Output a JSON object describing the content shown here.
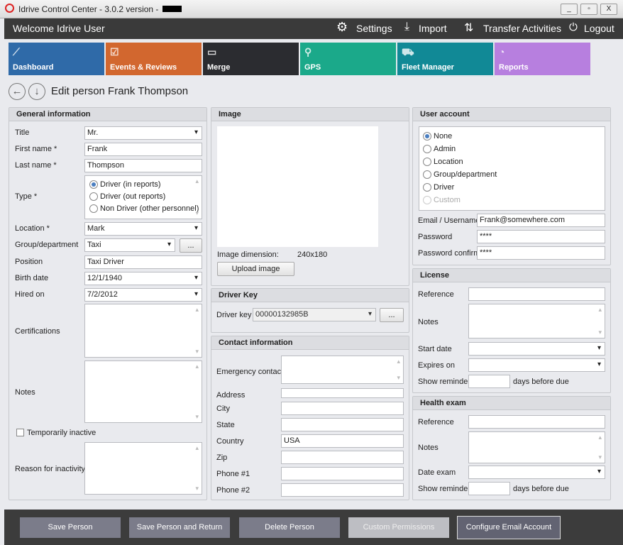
{
  "window": {
    "title": "Idrive Control Center - 3.0.2 version -",
    "minimize": "_",
    "maximize": "▫",
    "close": "X"
  },
  "header": {
    "welcome": "Welcome Idrive User",
    "settings": "Settings",
    "import": "Import",
    "transfer": "Transfer Activities",
    "logout": "Logout"
  },
  "tiles": [
    {
      "label": "Dashboard",
      "color": "#2f6aa8",
      "icon": "chart-icon",
      "glyph": "⟋"
    },
    {
      "label": "Events & Reviews",
      "color": "#d2672f",
      "icon": "clipboard-icon",
      "glyph": "☑"
    },
    {
      "label": "Merge",
      "color": "#2b2c30",
      "icon": "merge-icon",
      "glyph": "▭"
    },
    {
      "label": "GPS",
      "color": "#1ba98a",
      "icon": "location-pin-icon",
      "glyph": "⚲"
    },
    {
      "label": "Fleet Manager",
      "color": "#118996",
      "icon": "vehicles-icon",
      "glyph": "⛟"
    },
    {
      "label": "Reports",
      "color": "#b77fdf",
      "icon": "pie-chart-icon",
      "glyph": "◔"
    }
  ],
  "page": {
    "title": "Edit person Frank Thompson"
  },
  "general": {
    "heading": "General information",
    "title_label": "Title",
    "title_value": "Mr.",
    "first_label": "First name *",
    "first_value": "Frank",
    "last_label": "Last name *",
    "last_value": "Thompson",
    "type_label": "Type *",
    "type_options": [
      "Driver (in reports)",
      "Driver (out reports)",
      "Non Driver (other personnel)"
    ],
    "type_selected": 0,
    "location_label": "Location *",
    "location_value": "Mark",
    "group_label": "Group/department",
    "group_value": "Taxi",
    "group_more": "...",
    "position_label": "Position",
    "position_value": "Taxi Driver",
    "birth_label": "Birth date",
    "birth_value": "12/1/1940",
    "hired_label": "Hired on",
    "hired_value": "7/2/2012",
    "cert_label": "Certifications",
    "notes_label": "Notes",
    "inactive_label": "Temporarily inactive",
    "inactive_checked": false,
    "reason_label": "Reason for inactivity"
  },
  "image": {
    "heading": "Image",
    "dimension_label": "Image dimension:",
    "dimension_value": "240x180",
    "upload": "Upload image"
  },
  "driver_key": {
    "heading": "Driver Key",
    "label": "Driver key",
    "value": "00000132985B",
    "more": "..."
  },
  "contact": {
    "heading": "Contact information",
    "fields": [
      {
        "label": "Emergency contact",
        "value": ""
      },
      {
        "label": "Address",
        "value": ""
      },
      {
        "label": "City",
        "value": ""
      },
      {
        "label": "State",
        "value": ""
      },
      {
        "label": "Country",
        "value": "USA"
      },
      {
        "label": "Zip",
        "value": ""
      },
      {
        "label": "Phone #1",
        "value": ""
      },
      {
        "label": "Phone #2",
        "value": ""
      }
    ]
  },
  "account": {
    "heading": "User account",
    "options": [
      "None",
      "Admin",
      "Location",
      "Group/department",
      "Driver",
      "Custom"
    ],
    "selected": 0,
    "email_label": "Email / Username",
    "email_value": "Frank@somewhere.com",
    "password_label": "Password",
    "password_value": "****",
    "confirm_label": "Password confirm",
    "confirm_value": "****"
  },
  "license": {
    "heading": "License",
    "reference_label": "Reference",
    "notes_label": "Notes",
    "start_label": "Start date",
    "expires_label": "Expires on",
    "reminder_label": "Show reminder",
    "reminder_suffix": "days before due"
  },
  "health": {
    "heading": "Health exam",
    "reference_label": "Reference",
    "notes_label": "Notes",
    "date_label": "Date exam",
    "reminder_label": "Show reminder",
    "reminder_suffix": "days before due"
  },
  "actions": {
    "save": "Save Person",
    "save_return": "Save Person and Return",
    "delete": "Delete Person",
    "custom": "Custom Permissions",
    "email": "Configure Email Account"
  }
}
